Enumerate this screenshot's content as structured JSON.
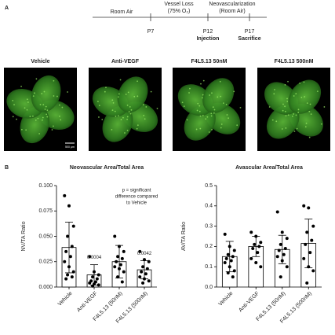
{
  "panel_a": {
    "label": "A",
    "phases": [
      "Room Air",
      "Vessel Loss",
      "(75% O₂)",
      "Neovascularization",
      "(Room Air)"
    ],
    "days": [
      "P7",
      "P12",
      "P17"
    ],
    "events": [
      "Injection",
      "Sacrifice"
    ]
  },
  "images": {
    "titles": [
      "Vehicle",
      "Anti-VEGF",
      "F4L5.13 50nM",
      "F4L5.13 500nM"
    ],
    "scale_bar": "500 µm"
  },
  "panel_b": {
    "label": "B"
  },
  "chart_data": [
    {
      "type": "bar",
      "title": "Neovascular Area/Total Area",
      "y_label": "NV/TA Ratio",
      "categories": [
        "Vehicle",
        "Anti-VEGF",
        "F4L5.13 (50nM)",
        "F4L5.13 (500nM)"
      ],
      "values": [
        0.039,
        0.012,
        0.025,
        0.017
      ],
      "errors": [
        0.025,
        0.01,
        0.016,
        0.009
      ],
      "points": [
        [
          0.09,
          0.08,
          0.06,
          0.05,
          0.04,
          0.035,
          0.03,
          0.025,
          0.02,
          0.015,
          0.012,
          0.01,
          0.008
        ],
        [
          0.03,
          0.015,
          0.012,
          0.01,
          0.008,
          0.006,
          0.005,
          0.004,
          0.003,
          0.002,
          0.001
        ],
        [
          0.05,
          0.04,
          0.035,
          0.03,
          0.028,
          0.025,
          0.022,
          0.02,
          0.018,
          0.015,
          0.01,
          0.005
        ],
        [
          0.035,
          0.027,
          0.025,
          0.02,
          0.018,
          0.015,
          0.013,
          0.01,
          0.008,
          0.006,
          0.004
        ]
      ],
      "p_values": [
        null,
        "0.0004",
        null,
        "0.0042"
      ],
      "note": [
        "p = significant",
        "difference compared",
        "to Vehicle"
      ],
      "color": "#ffffff",
      "point_color": "#000000",
      "ylim": [
        0,
        0.1
      ],
      "yticks": [
        {
          "value": 0,
          "label": "0.000"
        },
        {
          "value": 0.025,
          "label": "0.025"
        },
        {
          "value": 0.05,
          "label": "0.050"
        },
        {
          "value": 0.075,
          "label": "0.075"
        },
        {
          "value": 0.1,
          "label": "0.100"
        }
      ]
    },
    {
      "type": "bar",
      "title": "Avascular Area/Total Area",
      "y_label": "AV/TA Ratio",
      "categories": [
        "Vehicle",
        "Anti-VEGF",
        "F4L5.13 (50nM)",
        "F4L5.13 (500nM)"
      ],
      "values": [
        0.15,
        0.2,
        0.185,
        0.215
      ],
      "errors": [
        0.075,
        0.05,
        0.07,
        0.12
      ],
      "points": [
        [
          0.26,
          0.2,
          0.18,
          0.16,
          0.15,
          0.14,
          0.13,
          0.12,
          0.1,
          0.08,
          0.07,
          0.05
        ],
        [
          0.27,
          0.25,
          0.22,
          0.21,
          0.2,
          0.19,
          0.17,
          0.14,
          0.12,
          0.1
        ],
        [
          0.37,
          0.27,
          0.24,
          0.21,
          0.19,
          0.18,
          0.16,
          0.15,
          0.13,
          0.1,
          0.05
        ],
        [
          0.4,
          0.39,
          0.3,
          0.27,
          0.23,
          0.21,
          0.17,
          0.14,
          0.1,
          0.08,
          0.02
        ]
      ],
      "color": "#ffffff",
      "point_color": "#000000",
      "ylim": [
        0,
        0.5
      ],
      "yticks": [
        {
          "value": 0,
          "label": "0.0"
        },
        0.1,
        0.2,
        0.3,
        0.4,
        0.5
      ]
    }
  ]
}
